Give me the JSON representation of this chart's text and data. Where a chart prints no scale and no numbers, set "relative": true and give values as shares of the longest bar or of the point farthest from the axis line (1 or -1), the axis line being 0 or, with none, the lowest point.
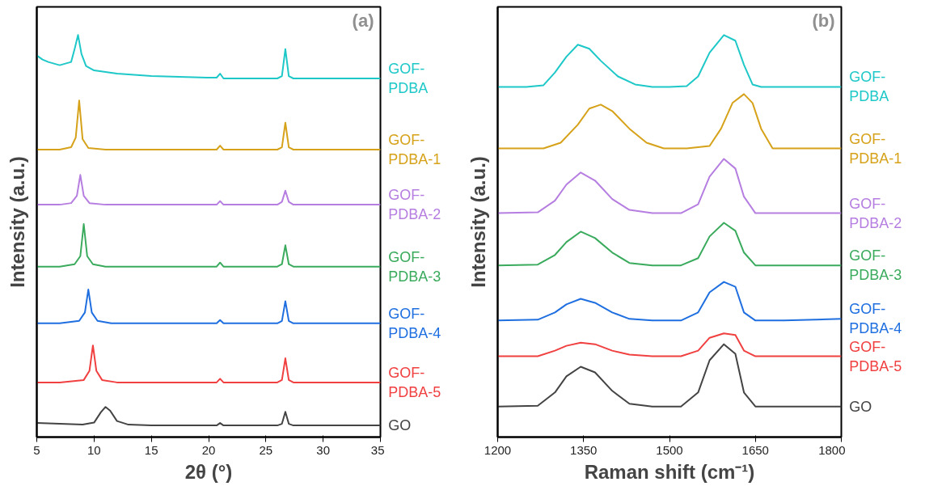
{
  "chart_data": [
    {
      "type": "line",
      "title": "(a)",
      "xlabel": "2θ (°)",
      "ylabel": "Intensity (a.u.)",
      "relative": true,
      "tick_labels": "x",
      "xlim": [
        5,
        35
      ],
      "xticks": [
        5,
        10,
        15,
        20,
        25,
        30,
        35
      ],
      "series": [
        {
          "name": "GOF-PDBA",
          "color": "#1fc8c8",
          "x": [
            5,
            5.5,
            6,
            7,
            8,
            8.3,
            8.6,
            8.9,
            9.3,
            10,
            12,
            15,
            20,
            20.7,
            21,
            21.3,
            26,
            26.4,
            26.7,
            27,
            27.4,
            30,
            35
          ],
          "values": [
            0.949,
            0.939,
            0.933,
            0.925,
            0.933,
            0.965,
            1,
            0.953,
            0.923,
            0.912,
            0.904,
            0.898,
            0.894,
            0.894,
            0.904,
            0.892,
            0.892,
            0.898,
            0.965,
            0.898,
            0.892,
            0.892,
            0.892
          ]
        },
        {
          "name": "GOF-PDBA-1",
          "color": "#d6a21a",
          "x": [
            5,
            7,
            8,
            8.4,
            8.7,
            9,
            9.5,
            11,
            20,
            20.7,
            21,
            21.3,
            26,
            26.4,
            26.7,
            27,
            27.4,
            35
          ],
          "values": [
            0.715,
            0.715,
            0.721,
            0.745,
            0.837,
            0.741,
            0.719,
            0.715,
            0.715,
            0.715,
            0.725,
            0.715,
            0.715,
            0.721,
            0.782,
            0.721,
            0.715,
            0.715
          ]
        },
        {
          "name": "GOF-PDBA-2",
          "color": "#b57ee0",
          "x": [
            5,
            7,
            8,
            8.5,
            8.8,
            9.1,
            9.6,
            11,
            20,
            20.7,
            21,
            21.3,
            26,
            26.4,
            26.7,
            27,
            27.4,
            35
          ],
          "values": [
            0.578,
            0.578,
            0.582,
            0.6,
            0.652,
            0.6,
            0.582,
            0.578,
            0.578,
            0.578,
            0.587,
            0.578,
            0.578,
            0.585,
            0.613,
            0.585,
            0.578,
            0.578
          ]
        },
        {
          "name": "GOF-PDBA-3",
          "color": "#3aaa5c",
          "x": [
            5,
            7,
            8.3,
            8.8,
            9.1,
            9.4,
            9.9,
            11,
            20,
            20.7,
            21,
            21.3,
            26,
            26.4,
            26.7,
            27,
            27.4,
            35
          ],
          "values": [
            0.424,
            0.424,
            0.43,
            0.45,
            0.53,
            0.45,
            0.43,
            0.424,
            0.424,
            0.424,
            0.434,
            0.424,
            0.424,
            0.43,
            0.477,
            0.43,
            0.424,
            0.424
          ]
        },
        {
          "name": "GOF-PDBA-4",
          "color": "#1f6fe0",
          "x": [
            5,
            7,
            8.7,
            9.2,
            9.5,
            9.8,
            10.3,
            11.5,
            20,
            20.7,
            21,
            21.3,
            26,
            26.4,
            26.7,
            27,
            27.4,
            35
          ],
          "values": [
            0.283,
            0.283,
            0.289,
            0.31,
            0.367,
            0.31,
            0.289,
            0.283,
            0.283,
            0.283,
            0.291,
            0.283,
            0.283,
            0.289,
            0.338,
            0.289,
            0.283,
            0.283
          ]
        },
        {
          "name": "GOF-PDBA-5",
          "color": "#f04040",
          "x": [
            5,
            7,
            9.1,
            9.6,
            9.9,
            10.2,
            10.7,
            12,
            20,
            20.7,
            21,
            21.3,
            26,
            26.4,
            26.7,
            27,
            27.4,
            35
          ],
          "values": [
            0.136,
            0.136,
            0.142,
            0.165,
            0.228,
            0.165,
            0.142,
            0.136,
            0.136,
            0.136,
            0.145,
            0.136,
            0.136,
            0.142,
            0.196,
            0.142,
            0.136,
            0.136
          ]
        },
        {
          "name": "GO",
          "color": "#444444",
          "x": [
            5,
            7,
            9,
            10,
            10.6,
            11,
            11.4,
            12,
            13,
            15,
            20,
            20.7,
            21,
            21.3,
            26,
            26.4,
            26.7,
            27,
            27.4,
            35
          ],
          "values": [
            0.035,
            0.033,
            0.031,
            0.036,
            0.062,
            0.075,
            0.066,
            0.04,
            0.031,
            0.029,
            0.029,
            0.029,
            0.035,
            0.029,
            0.029,
            0.033,
            0.063,
            0.033,
            0.029,
            0.029
          ]
        }
      ]
    },
    {
      "type": "line",
      "title": "(b)",
      "xlabel": "Raman shift (cm⁻¹)",
      "ylabel": "Intensity (a.u.)",
      "relative": true,
      "tick_labels": "x",
      "xlim": [
        1200,
        1800
      ],
      "xticks": [
        1200,
        1350,
        1500,
        1650,
        1800
      ],
      "series": [
        {
          "name": "GOF-PDBA",
          "color": "#1fc8c8",
          "x": [
            1200,
            1250,
            1280,
            1300,
            1320,
            1340,
            1360,
            1380,
            1410,
            1440,
            1470,
            1500,
            1530,
            1550,
            1570,
            1595,
            1615,
            1630,
            1645,
            1660,
            1700,
            1750,
            1800
          ],
          "values": [
            0.871,
            0.871,
            0.875,
            0.907,
            0.946,
            0.976,
            0.966,
            0.936,
            0.897,
            0.877,
            0.871,
            0.871,
            0.873,
            0.897,
            0.956,
            1,
            0.986,
            0.926,
            0.877,
            0.871,
            0.871,
            0.871,
            0.871
          ]
        },
        {
          "name": "GOF-PDBA-1",
          "color": "#d6a21a",
          "x": [
            1200,
            1280,
            1310,
            1340,
            1360,
            1380,
            1400,
            1430,
            1460,
            1490,
            1530,
            1570,
            1590,
            1610,
            1630,
            1645,
            1660,
            1680,
            1700,
            1800
          ],
          "values": [
            0.718,
            0.718,
            0.732,
            0.777,
            0.817,
            0.827,
            0.811,
            0.767,
            0.732,
            0.718,
            0.718,
            0.724,
            0.767,
            0.831,
            0.853,
            0.831,
            0.767,
            0.718,
            0.718,
            0.718
          ]
        },
        {
          "name": "GOF-PDBA-2",
          "color": "#b57ee0",
          "x": [
            1200,
            1270,
            1300,
            1320,
            1345,
            1370,
            1400,
            1430,
            1470,
            1520,
            1550,
            1570,
            1595,
            1615,
            1630,
            1650,
            1700,
            1800
          ],
          "values": [
            0.557,
            0.559,
            0.588,
            0.628,
            0.658,
            0.638,
            0.592,
            0.565,
            0.557,
            0.557,
            0.579,
            0.648,
            0.692,
            0.668,
            0.598,
            0.557,
            0.557,
            0.557
          ]
        },
        {
          "name": "GOF-PDBA-3",
          "color": "#3aaa5c",
          "x": [
            1200,
            1270,
            1300,
            1320,
            1345,
            1370,
            1400,
            1430,
            1470,
            1520,
            1550,
            1570,
            1595,
            1615,
            1630,
            1650,
            1700,
            1800
          ],
          "values": [
            0.427,
            0.429,
            0.453,
            0.485,
            0.511,
            0.495,
            0.459,
            0.433,
            0.427,
            0.427,
            0.445,
            0.499,
            0.533,
            0.513,
            0.459,
            0.427,
            0.427,
            0.427
          ]
        },
        {
          "name": "GOF-PDBA-4",
          "color": "#1f6fe0",
          "x": [
            1200,
            1270,
            1300,
            1320,
            1345,
            1370,
            1400,
            1430,
            1470,
            1520,
            1550,
            1570,
            1595,
            1615,
            1630,
            1650,
            1700,
            1800
          ],
          "values": [
            0.29,
            0.292,
            0.31,
            0.33,
            0.344,
            0.334,
            0.31,
            0.294,
            0.29,
            0.29,
            0.31,
            0.36,
            0.386,
            0.374,
            0.31,
            0.29,
            0.29,
            0.294
          ]
        },
        {
          "name": "GOF-PDBA-5",
          "color": "#f04040",
          "x": [
            1200,
            1270,
            1300,
            1320,
            1345,
            1370,
            1400,
            1430,
            1470,
            1520,
            1550,
            1570,
            1595,
            1615,
            1630,
            1650,
            1700,
            1800
          ],
          "values": [
            0.201,
            0.201,
            0.215,
            0.227,
            0.235,
            0.231,
            0.215,
            0.205,
            0.201,
            0.201,
            0.215,
            0.247,
            0.258,
            0.254,
            0.215,
            0.201,
            0.201,
            0.201
          ]
        },
        {
          "name": "GO",
          "color": "#444444",
          "x": [
            1200,
            1270,
            1300,
            1320,
            1345,
            1370,
            1400,
            1430,
            1470,
            1520,
            1550,
            1570,
            1595,
            1615,
            1630,
            1650,
            1700,
            1800
          ],
          "values": [
            0.076,
            0.078,
            0.111,
            0.151,
            0.175,
            0.161,
            0.115,
            0.083,
            0.076,
            0.076,
            0.111,
            0.191,
            0.231,
            0.207,
            0.111,
            0.076,
            0.076,
            0.076
          ]
        }
      ]
    }
  ]
}
